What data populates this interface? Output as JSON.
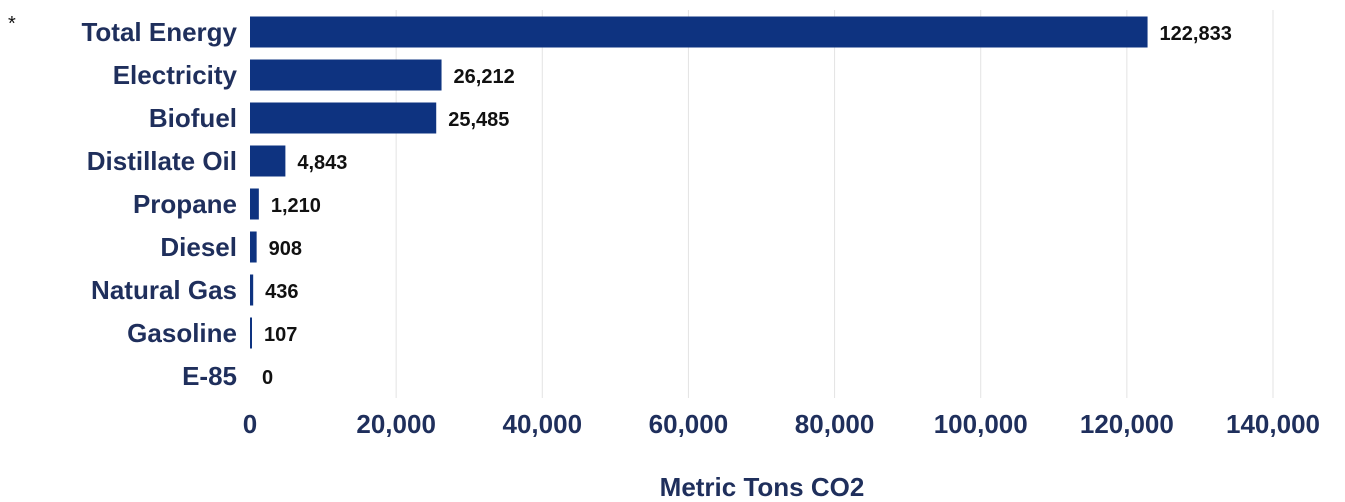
{
  "chart_data": {
    "type": "bar",
    "orientation": "horizontal",
    "categories": [
      "Total Energy",
      "Electricity",
      "Biofuel",
      "Distillate Oil",
      "Propane",
      "Diesel",
      "Natural Gas",
      "Gasoline",
      "E-85"
    ],
    "values": [
      122833,
      26212,
      25485,
      4843,
      1210,
      908,
      436,
      107,
      0
    ],
    "value_labels": [
      "122,833",
      "26,212",
      "25,485",
      "4,843",
      "1,210",
      "908",
      "436",
      "107",
      "0"
    ],
    "xlabel": "Metric Tons CO2",
    "ylabel": "",
    "xlim": [
      0,
      140000
    ],
    "x_ticks": [
      0,
      20000,
      40000,
      60000,
      80000,
      100000,
      120000,
      140000
    ],
    "x_tick_labels": [
      "0",
      "20,000",
      "40,000",
      "60,000",
      "80,000",
      "100,000",
      "120,000",
      "140,000"
    ],
    "grid": "vertical",
    "legend": "none",
    "footnote_marker": "*",
    "colors": {
      "bar": "#0e3380",
      "grid": "#e3e3e3",
      "axis_text": "#1f2f5c",
      "value_text": "#111111"
    }
  }
}
